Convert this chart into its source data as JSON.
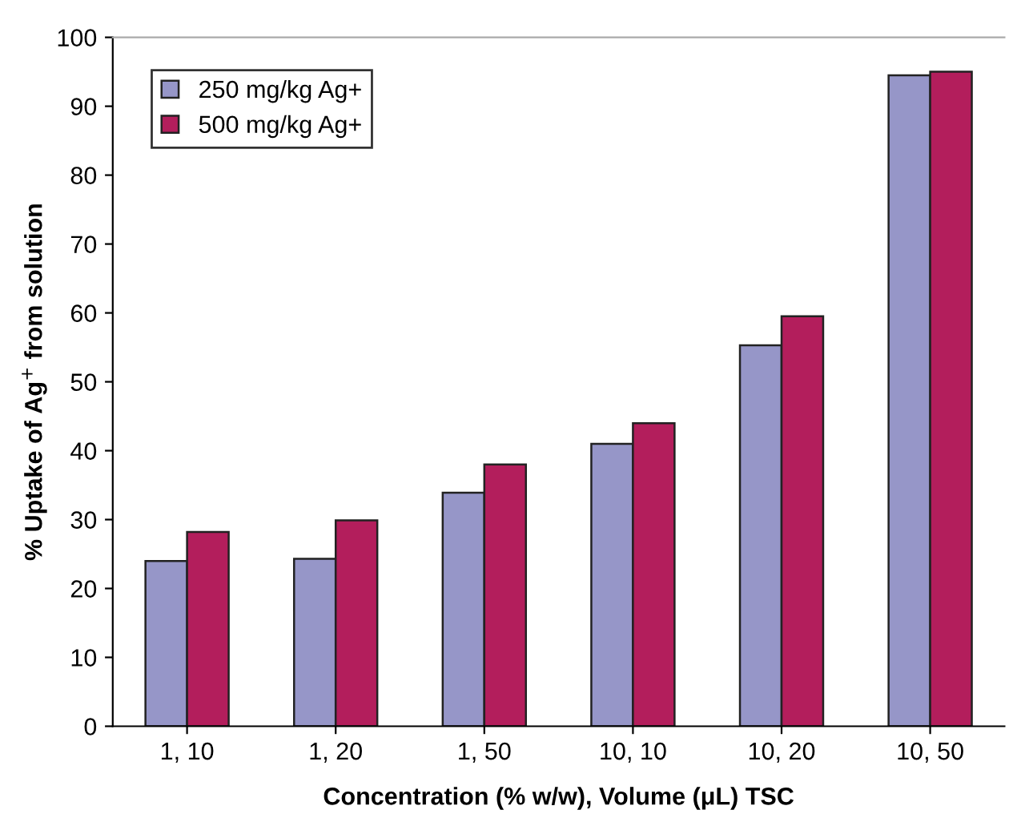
{
  "chart_data": {
    "type": "bar",
    "xlabel": "Concentration (% w/w), Volume (μL) TSC",
    "ylabel": "% Uptake of Ag$^{+}$ from solution",
    "categories": [
      "1, 10",
      "1, 20",
      "1, 50",
      "10, 10",
      "10, 20",
      "10, 50"
    ],
    "series": [
      {
        "name": "250 mg/kg Ag+",
        "color": "#9696c8",
        "values": [
          24.0,
          24.3,
          33.9,
          41.0,
          55.3,
          94.5
        ]
      },
      {
        "name": "500 mg/kg Ag+",
        "color": "#b31e5c",
        "values": [
          28.2,
          29.9,
          38.0,
          44.0,
          59.5,
          95.0
        ]
      }
    ],
    "ylim": [
      0,
      100
    ],
    "yticks": [
      0,
      10,
      20,
      30,
      40,
      50,
      60,
      70,
      80,
      90,
      100
    ],
    "grid": false,
    "legend": "top left"
  }
}
